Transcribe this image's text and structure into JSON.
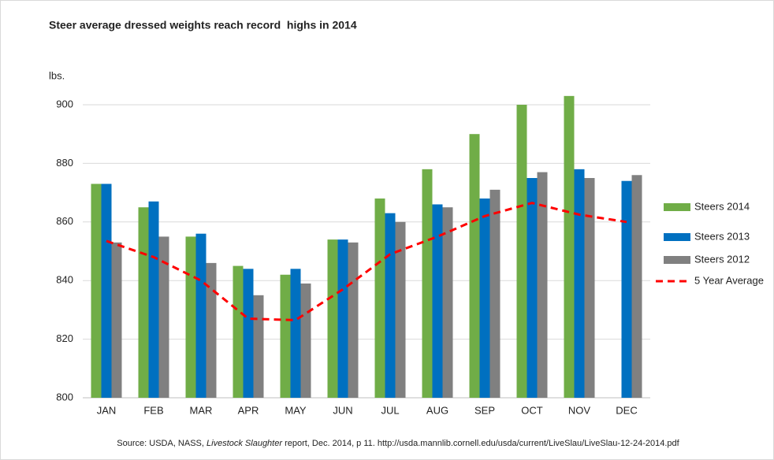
{
  "chart_data": {
    "type": "bar",
    "title": "Steer average dressed weights reach record  highs in 2014",
    "y_label": "lbs.",
    "source": [
      "Source: USDA, NASS, ",
      "Livestock Slaughter",
      " report, Dec. 2014, p 11. http://usda.mannlib.cornell.edu/usda/current/LiveSlau/LiveSlau-12-24-2014.pdf"
    ],
    "categories": [
      "JAN",
      "FEB",
      "MAR",
      "APR",
      "MAY",
      "JUN",
      "JUL",
      "AUG",
      "SEP",
      "OCT",
      "NOV",
      "DEC"
    ],
    "series": [
      {
        "name": "Steers 2014",
        "color": "#70ad47",
        "values": [
          873,
          865,
          855,
          845,
          842,
          854,
          868,
          878,
          890,
          900,
          903,
          null
        ]
      },
      {
        "name": "Steers 2013",
        "color": "#0070c0",
        "values": [
          873,
          867,
          856,
          844,
          844,
          854,
          863,
          866,
          868,
          875,
          878,
          874
        ]
      },
      {
        "name": "Steers 2012",
        "color": "#808080",
        "values": [
          853,
          855,
          846,
          835,
          839,
          853,
          860,
          865,
          871,
          877,
          875,
          876
        ]
      },
      {
        "name": "5 Year Average",
        "type": "line",
        "dashed": true,
        "color": "#ff0000",
        "values": [
          853.5,
          848,
          840,
          827,
          826.5,
          837,
          849,
          855,
          862,
          866.5,
          862.5,
          860
        ]
      }
    ],
    "ylim": [
      800,
      900
    ],
    "yticks": [
      800,
      820,
      840,
      860,
      880,
      900
    ],
    "grid": true
  }
}
